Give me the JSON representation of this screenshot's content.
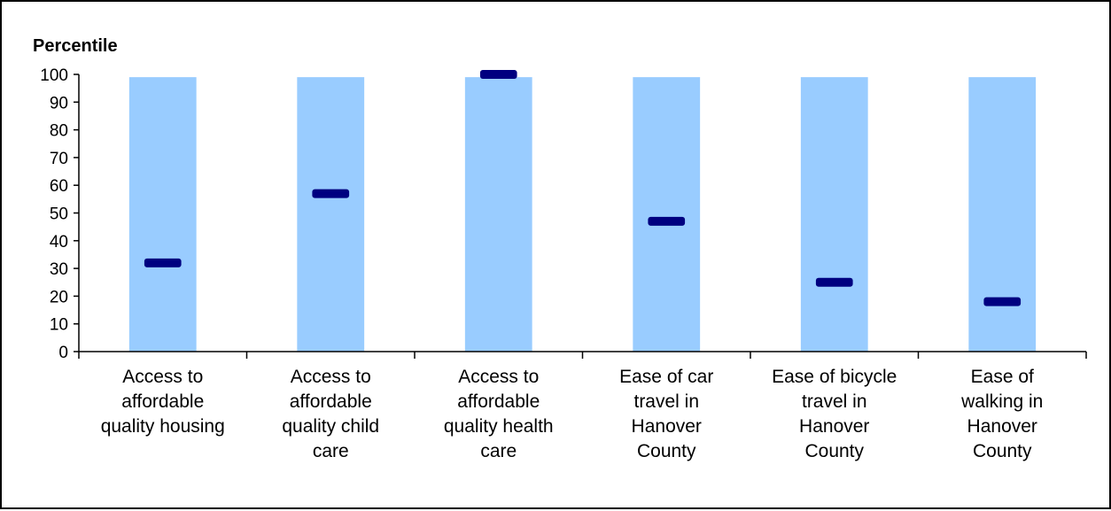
{
  "chart_data": {
    "type": "bar",
    "ylabel": "Percentile",
    "xlabel": "",
    "ylim": [
      0,
      100
    ],
    "yticks": [
      0,
      10,
      20,
      30,
      40,
      50,
      60,
      70,
      80,
      90,
      100
    ],
    "grid": false,
    "categories": [
      [
        "Access to",
        "affordable",
        "quality housing"
      ],
      [
        "Access to",
        "affordable",
        "quality child",
        "care"
      ],
      [
        "Access to",
        "affordable",
        "quality health",
        "care"
      ],
      [
        "Ease of car",
        "travel in",
        "Hanover",
        "County"
      ],
      [
        "Ease of bicycle",
        "travel in",
        "Hanover",
        "County"
      ],
      [
        "Ease of",
        "walking in",
        "Hanover",
        "County"
      ]
    ],
    "series": [
      {
        "type": "bar",
        "values": [
          99,
          99,
          99,
          99,
          99,
          99
        ],
        "color": "#99ccff"
      },
      {
        "type": "marker",
        "values": [
          32,
          57,
          100,
          47,
          25,
          18
        ],
        "color": "#000080"
      }
    ]
  }
}
